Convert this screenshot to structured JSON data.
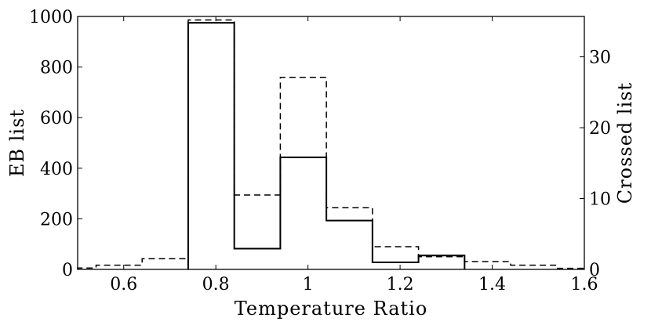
{
  "chart_data": {
    "type": "histogram",
    "xlabel": "Temperature Ratio",
    "ylabel_left": "EB list",
    "ylabel_right": "Crossed list",
    "xlim": [
      0.5,
      1.6
    ],
    "ylim_left": [
      0,
      1000
    ],
    "ylim_right": [
      0,
      35.7
    ],
    "x_ticks": [
      0.6,
      0.8,
      1.0,
      1.2,
      1.4,
      1.6
    ],
    "x_tick_labels": [
      "0.6",
      "0.8",
      "1",
      "1.2",
      "1.4",
      "1.6"
    ],
    "y_left_ticks": [
      0,
      200,
      400,
      600,
      800,
      1000
    ],
    "y_right_ticks": [
      0,
      10,
      20,
      30
    ],
    "grid": false,
    "series": [
      {
        "name": "EB list",
        "axis": "left",
        "style": "solid",
        "color": "#000000",
        "bins": [
          {
            "x0": 0.74,
            "x1": 0.84,
            "value": 975
          },
          {
            "x0": 0.84,
            "x1": 0.94,
            "value": 82
          },
          {
            "x0": 0.94,
            "x1": 1.04,
            "value": 443
          },
          {
            "x0": 1.04,
            "x1": 1.14,
            "value": 193
          },
          {
            "x0": 1.14,
            "x1": 1.24,
            "value": 28
          },
          {
            "x0": 1.24,
            "x1": 1.34,
            "value": 55
          }
        ]
      },
      {
        "name": "Crossed list",
        "axis": "right",
        "style": "dashed",
        "color": "#000000",
        "bins": [
          {
            "x0": 0.5,
            "x1": 0.54,
            "value": 0.2
          },
          {
            "x0": 0.54,
            "x1": 0.64,
            "value": 0.6
          },
          {
            "x0": 0.64,
            "x1": 0.74,
            "value": 1.5
          },
          {
            "x0": 0.74,
            "x1": 0.84,
            "value": 35.2
          },
          {
            "x0": 0.84,
            "x1": 0.94,
            "value": 10.5
          },
          {
            "x0": 0.94,
            "x1": 1.04,
            "value": 27.1
          },
          {
            "x0": 1.04,
            "x1": 1.14,
            "value": 8.7
          },
          {
            "x0": 1.14,
            "x1": 1.24,
            "value": 3.2
          },
          {
            "x0": 1.24,
            "x1": 1.34,
            "value": 1.8
          },
          {
            "x0": 1.34,
            "x1": 1.44,
            "value": 1.1
          },
          {
            "x0": 1.44,
            "x1": 1.54,
            "value": 0.6
          },
          {
            "x0": 1.54,
            "x1": 1.6,
            "value": 0.15
          }
        ]
      }
    ]
  }
}
